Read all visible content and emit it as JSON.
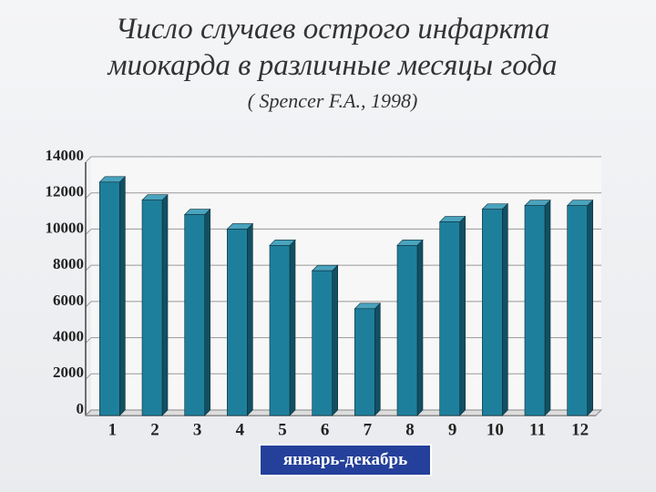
{
  "chart_data": {
    "type": "bar3d",
    "title": "Число случаев острого инфаркта миокарда в различные месяцы года",
    "subtitle": "( Spencer F.A., 1998)",
    "x_label": "январь-декабрь",
    "categories": [
      "1",
      "2",
      "3",
      "4",
      "5",
      "6",
      "7",
      "8",
      "9",
      "10",
      "11",
      "12"
    ],
    "values": [
      12900,
      11900,
      11100,
      10300,
      9400,
      8000,
      5900,
      9400,
      10700,
      11400,
      11600,
      11600
    ],
    "color": "#1e7f9c",
    "ylim": [
      0,
      14000
    ],
    "yticks": [
      0,
      2000,
      4000,
      6000,
      8000,
      10000,
      12000,
      14000
    ],
    "grid": true
  }
}
